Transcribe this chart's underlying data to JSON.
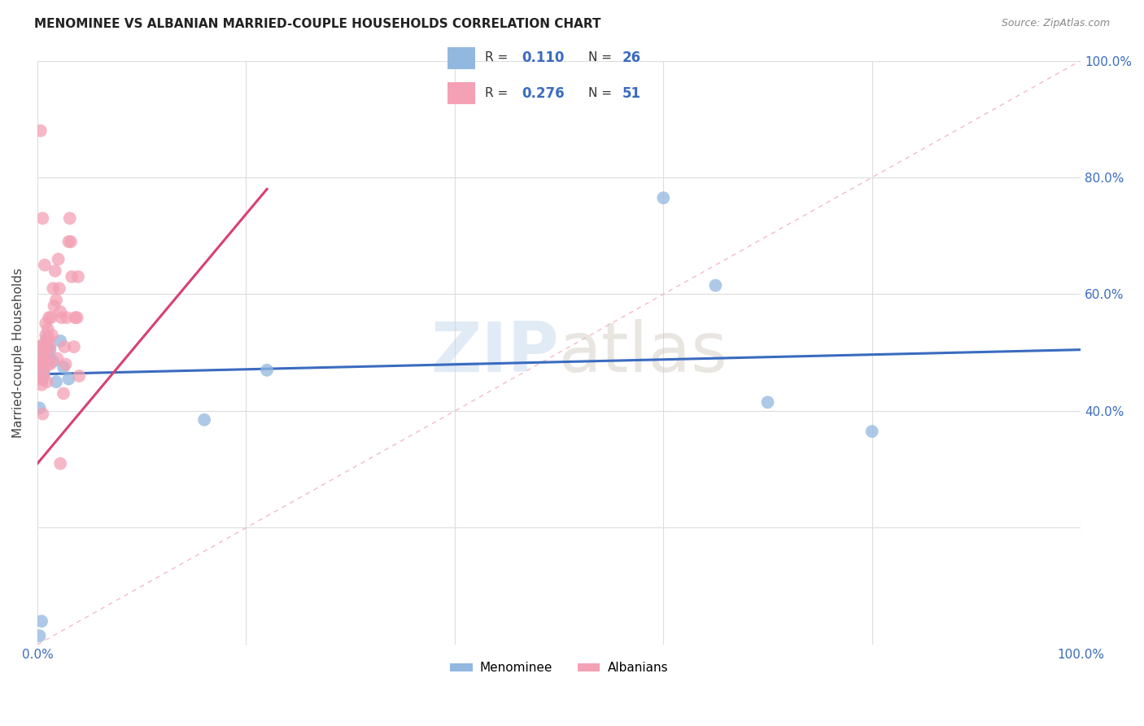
{
  "title": "MENOMINEE VS ALBANIAN MARRIED-COUPLE HOUSEHOLDS CORRELATION CHART",
  "source": "Source: ZipAtlas.com",
  "ylabel": "Married-couple Households",
  "xlim": [
    0,
    1
  ],
  "ylim": [
    0,
    1
  ],
  "menominee_color": "#92b8e0",
  "albanian_color": "#f4a0b5",
  "menominee_line_color": "#3a6bbf",
  "albanian_line_color": "#d94070",
  "diagonal_color": "#f0b0c0",
  "R_menominee": 0.11,
  "N_menominee": 26,
  "R_albanian": 0.276,
  "N_albanian": 51,
  "menominee_x": [
    0.002,
    0.003,
    0.004,
    0.005,
    0.006,
    0.007,
    0.008,
    0.009,
    0.01,
    0.012,
    0.015,
    0.018,
    0.022,
    0.025,
    0.03,
    0.002,
    0.004,
    0.006,
    0.008,
    0.012,
    0.6,
    0.65,
    0.7,
    0.8,
    0.22,
    0.16
  ],
  "menominee_y": [
    0.405,
    0.49,
    0.51,
    0.455,
    0.47,
    0.49,
    0.5,
    0.525,
    0.51,
    0.49,
    0.485,
    0.45,
    0.52,
    0.475,
    0.455,
    0.015,
    0.04,
    0.465,
    0.49,
    0.505,
    0.765,
    0.615,
    0.415,
    0.365,
    0.47,
    0.385
  ],
  "albanian_x": [
    0.001,
    0.002,
    0.003,
    0.003,
    0.004,
    0.004,
    0.005,
    0.005,
    0.006,
    0.006,
    0.007,
    0.007,
    0.008,
    0.008,
    0.009,
    0.009,
    0.01,
    0.01,
    0.011,
    0.011,
    0.012,
    0.012,
    0.013,
    0.014,
    0.015,
    0.016,
    0.017,
    0.018,
    0.019,
    0.02,
    0.021,
    0.022,
    0.023,
    0.025,
    0.026,
    0.027,
    0.028,
    0.03,
    0.031,
    0.032,
    0.033,
    0.035,
    0.036,
    0.038,
    0.039,
    0.04,
    0.003,
    0.005,
    0.007,
    0.01,
    0.022
  ],
  "albanian_y": [
    0.48,
    0.455,
    0.48,
    0.51,
    0.49,
    0.445,
    0.47,
    0.395,
    0.515,
    0.46,
    0.505,
    0.49,
    0.53,
    0.55,
    0.5,
    0.45,
    0.54,
    0.48,
    0.56,
    0.525,
    0.51,
    0.48,
    0.56,
    0.53,
    0.61,
    0.58,
    0.64,
    0.59,
    0.49,
    0.66,
    0.61,
    0.57,
    0.56,
    0.43,
    0.51,
    0.48,
    0.56,
    0.69,
    0.73,
    0.69,
    0.63,
    0.51,
    0.56,
    0.56,
    0.63,
    0.46,
    0.88,
    0.73,
    0.65,
    0.52,
    0.31
  ],
  "men_line_x0": 0.0,
  "men_line_x1": 1.0,
  "men_line_y0": 0.463,
  "men_line_y1": 0.505,
  "alb_line_x0": 0.0,
  "alb_line_x1": 0.22,
  "alb_line_y0": 0.31,
  "alb_line_y1": 0.78
}
